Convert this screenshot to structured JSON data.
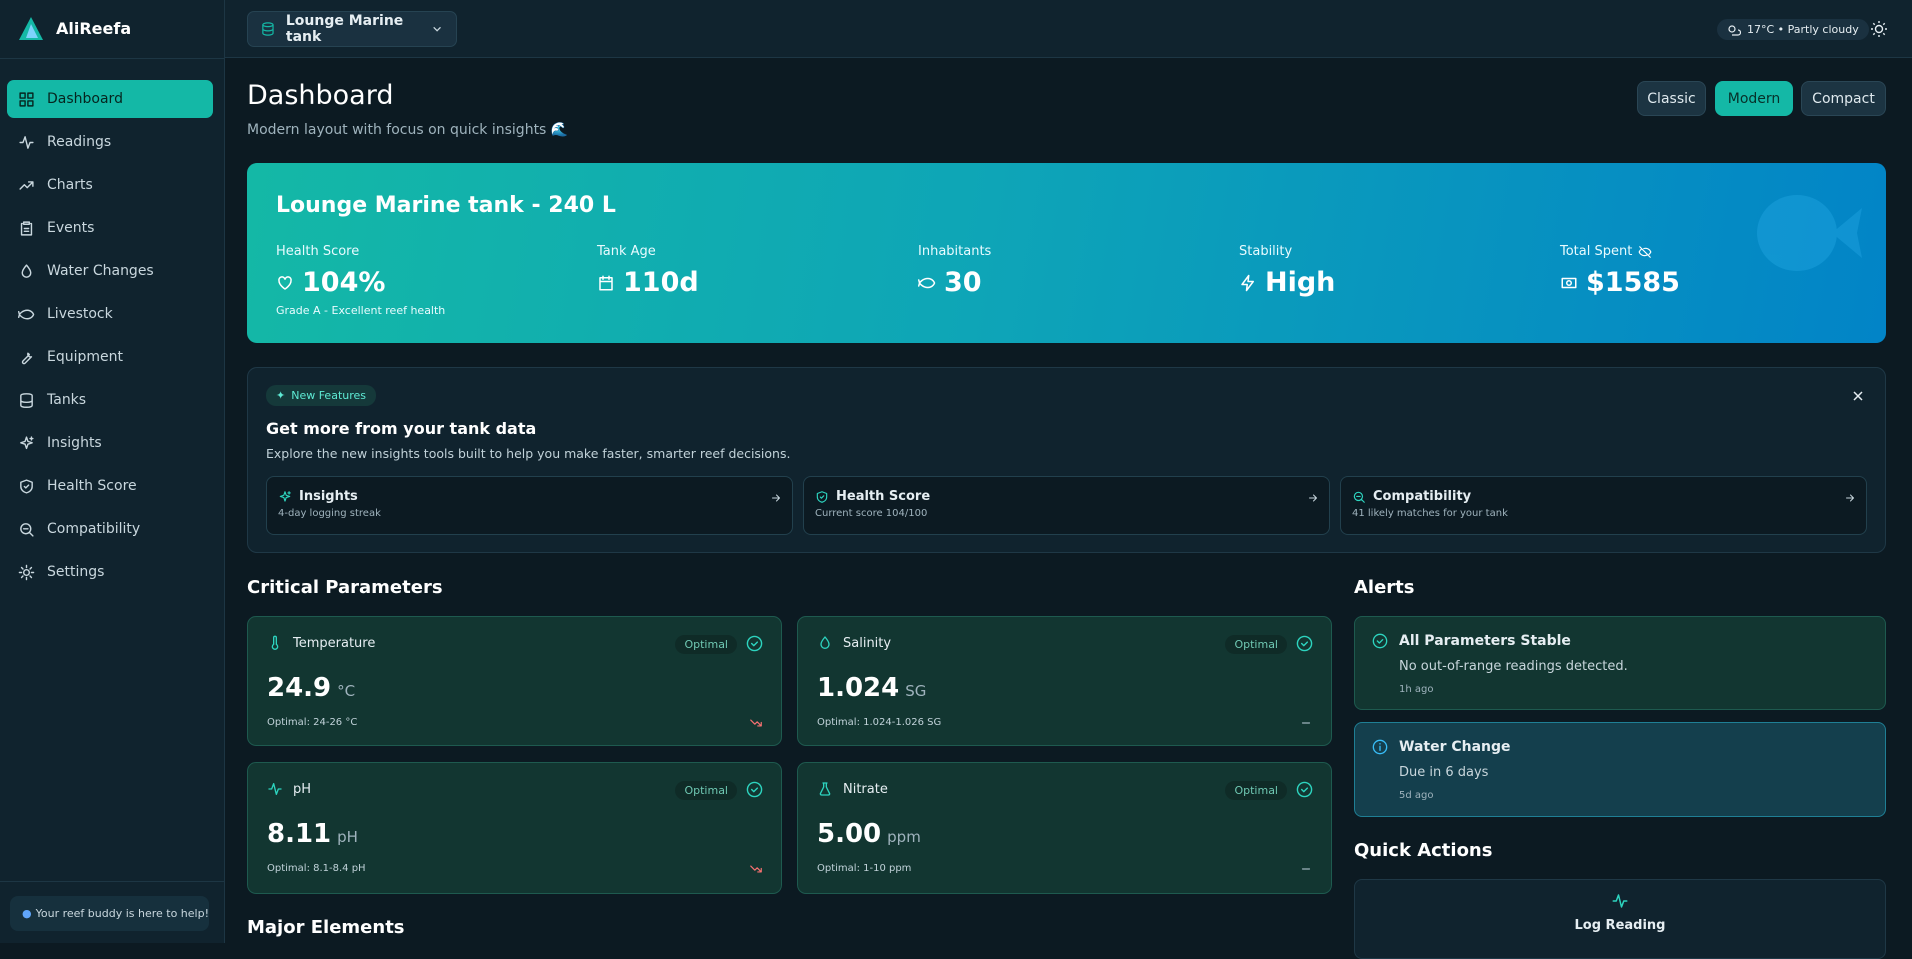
{
  "sidebar": {
    "brand": "AliReefa",
    "nav": [
      "Dashboard",
      "Readings",
      "Charts",
      "Events",
      "Water Changes",
      "Livestock",
      "Equipment",
      "Tanks",
      "Insights",
      "Health Score",
      "Compatibility",
      "Settings"
    ],
    "footer": "Your reef buddy is here to help!"
  },
  "header": {
    "tank_selector": "Lounge Marine tank",
    "weather": "17°C • Partly cloudy"
  },
  "page": {
    "title": "Dashboard",
    "subtitle": "Modern layout with focus on quick insights 🌊",
    "layouts": [
      "Classic",
      "Modern",
      "Compact"
    ]
  },
  "hero": {
    "title": "Lounge Marine tank - 240 L",
    "stats": [
      {
        "label": "Health Score",
        "value": "104%",
        "note": "Grade A - Excellent reef health"
      },
      {
        "label": "Tank Age",
        "value": "110d"
      },
      {
        "label": "Inhabitants",
        "value": "30"
      },
      {
        "label": "Stability",
        "value": "High"
      },
      {
        "label": "Total Spent",
        "value": "$1585"
      }
    ]
  },
  "features": {
    "badge": "New Features",
    "title": "Get more from your tank data",
    "description": "Explore the new insights tools built to help you make faster, smarter reef decisions.",
    "cards": [
      {
        "title": "Insights",
        "subtitle": "4-day logging streak"
      },
      {
        "title": "Health Score",
        "subtitle": "Current score 104/100"
      },
      {
        "title": "Compatibility",
        "subtitle": "41 likely matches for your tank"
      }
    ]
  },
  "critical": {
    "title": "Critical Parameters",
    "items": [
      {
        "name": "Temperature",
        "status": "Optimal",
        "value": "24.9",
        "unit": "°C",
        "range": "Optimal: 24-26 °C"
      },
      {
        "name": "Salinity",
        "status": "Optimal",
        "value": "1.024",
        "unit": "SG",
        "range": "Optimal: 1.024-1.026 SG"
      },
      {
        "name": "pH",
        "status": "Optimal",
        "value": "8.11",
        "unit": "pH",
        "range": "Optimal: 8.1-8.4 pH"
      },
      {
        "name": "Nitrate",
        "status": "Optimal",
        "value": "5.00",
        "unit": "ppm",
        "range": "Optimal: 1-10 ppm"
      }
    ]
  },
  "alerts": {
    "title": "Alerts",
    "items": [
      {
        "title": "All Parameters Stable",
        "message": "No out-of-range readings detected.",
        "time": "1h ago"
      },
      {
        "title": "Water Change",
        "message": "Due in 6 days",
        "time": "5d ago"
      }
    ]
  },
  "quick_actions": {
    "title": "Quick Actions",
    "items": [
      "Log Reading"
    ]
  },
  "major_elements": {
    "title": "Major Elements"
  }
}
